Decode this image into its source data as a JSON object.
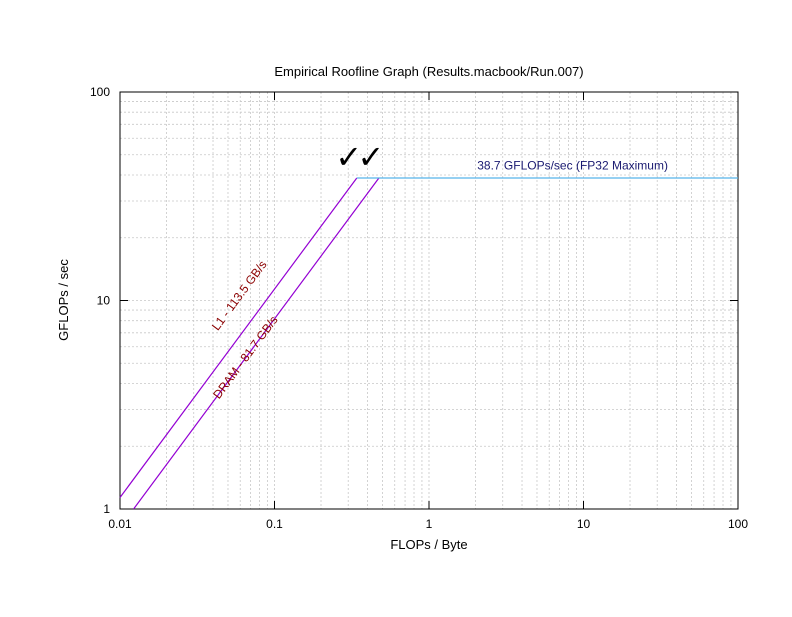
{
  "chart_data": {
    "type": "line",
    "title": "Empirical Roofline Graph (Results.macbook/Run.007)",
    "xlabel": "FLOPs / Byte",
    "ylabel": "GFLOPs / sec",
    "x_scale": "log",
    "y_scale": "log",
    "xlim": [
      0.01,
      100
    ],
    "ylim": [
      1,
      100
    ],
    "x_ticks": [
      "0.01",
      "0.1",
      "1",
      "10",
      "100"
    ],
    "y_ticks": [
      "1",
      "10",
      "100"
    ],
    "grid": true,
    "series": [
      {
        "name": "L1 - 113.5 GB/s",
        "color": "#9400d3",
        "label_color": "#8b0000",
        "bandwidth": 113.5,
        "x": [
          0.01,
          0.341
        ],
        "y": [
          1.135,
          38.7
        ]
      },
      {
        "name": "DRAM - 81.7 GB/s",
        "color": "#9400d3",
        "label_color": "#8b0000",
        "bandwidth": 81.7,
        "x": [
          0.01224,
          0.474
        ],
        "y": [
          1.0,
          38.7
        ]
      },
      {
        "name": "38.7 GFLOPs/sec (FP32 Maximum)",
        "color": "#56b4e9",
        "label_color": "#191970",
        "x": [
          0.341,
          100
        ],
        "y": [
          38.7,
          38.7
        ]
      }
    ],
    "annotations": [
      "✓",
      "✓"
    ]
  }
}
